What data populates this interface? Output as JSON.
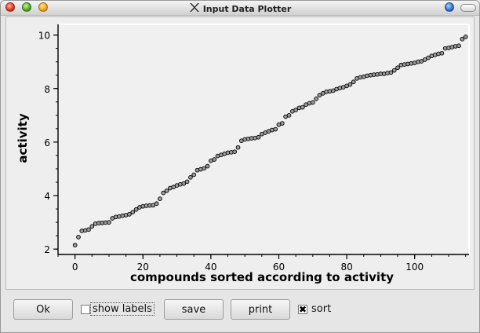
{
  "window": {
    "title": "Input Data Plotter",
    "app_icon": "x-icon"
  },
  "chart_data": {
    "type": "scatter",
    "title": "",
    "xlabel": "compounds sorted according to activity",
    "ylabel": "activity",
    "xlim": [
      -5,
      116
    ],
    "ylim": [
      1.8,
      10.4
    ],
    "x_ticks": [
      0,
      20,
      40,
      60,
      80,
      100
    ],
    "y_ticks": [
      2,
      4,
      6,
      8,
      10
    ],
    "x_tick_labels": [
      "0",
      "20",
      "40",
      "60",
      "80",
      "100"
    ],
    "y_tick_labels": [
      "2",
      "4",
      "6",
      "8",
      "10"
    ],
    "grid": false,
    "legend": "none",
    "marker_color": "#9a9a9a",
    "values": [
      2.15,
      2.45,
      2.68,
      2.7,
      2.73,
      2.85,
      2.95,
      2.97,
      2.98,
      2.99,
      3.0,
      3.15,
      3.2,
      3.22,
      3.25,
      3.27,
      3.3,
      3.38,
      3.48,
      3.56,
      3.6,
      3.62,
      3.63,
      3.64,
      3.7,
      3.88,
      4.1,
      4.18,
      4.28,
      4.32,
      4.38,
      4.42,
      4.45,
      4.52,
      4.68,
      4.78,
      4.95,
      4.98,
      5.02,
      5.1,
      5.3,
      5.35,
      5.48,
      5.52,
      5.56,
      5.6,
      5.62,
      5.64,
      5.8,
      6.05,
      6.1,
      6.12,
      6.14,
      6.15,
      6.18,
      6.3,
      6.35,
      6.4,
      6.45,
      6.48,
      6.65,
      6.7,
      6.95,
      7.0,
      7.15,
      7.2,
      7.28,
      7.3,
      7.4,
      7.45,
      7.48,
      7.62,
      7.75,
      7.82,
      7.88,
      7.9,
      7.92,
      7.98,
      8.02,
      8.05,
      8.1,
      8.15,
      8.25,
      8.38,
      8.42,
      8.44,
      8.48,
      8.5,
      8.52,
      8.53,
      8.55,
      8.55,
      8.58,
      8.6,
      8.68,
      8.78,
      8.88,
      8.9,
      8.92,
      8.94,
      8.96,
      9.0,
      9.02,
      9.08,
      9.15,
      9.22,
      9.26,
      9.3,
      9.32,
      9.5,
      9.52,
      9.55,
      9.58,
      9.6,
      9.85,
      9.93
    ]
  },
  "controls": {
    "ok_label": "Ok",
    "show_labels_label": "show labels",
    "show_labels_checked": false,
    "save_label": "save",
    "print_label": "print",
    "sort_label": "sort",
    "sort_checked": true,
    "sort_mark": "✖"
  }
}
